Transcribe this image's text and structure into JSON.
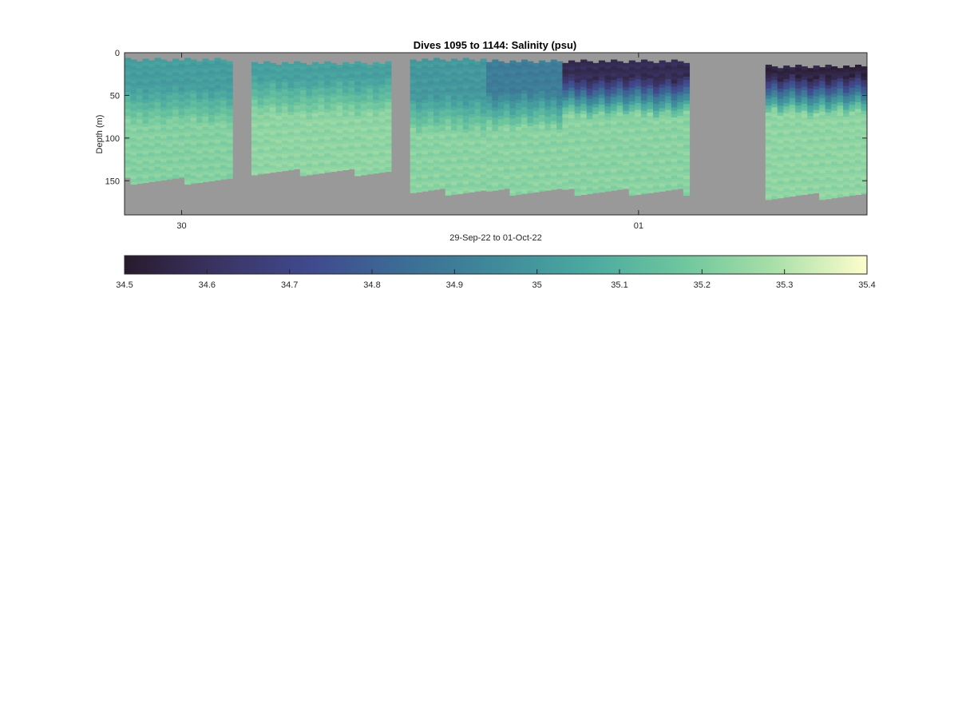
{
  "chart_data": {
    "type": "heatmap",
    "title": "Dives 1095 to 1144: Salinity (psu)",
    "xlabel": "29-Sep-22 to 01-Oct-22",
    "ylabel": "Depth (m)",
    "x_range": [
      "2022-09-29T21:00",
      "2022-10-01T12:00"
    ],
    "x_ticks": [
      {
        "label": "30",
        "value": "2022-09-30T00:00"
      },
      {
        "label": "01",
        "value": "2022-10-01T00:00"
      }
    ],
    "y_range": [
      0,
      190
    ],
    "y_reversed": true,
    "y_ticks": [
      0,
      50,
      100,
      150
    ],
    "nodata_color": "#999999",
    "colorbar": {
      "colormap": "deep (cmocean, reversed)",
      "range": [
        34.5,
        35.4
      ],
      "ticks": [
        "34.5",
        "34.6",
        "34.7",
        "34.8",
        "34.9",
        "35",
        "35.1",
        "35.2",
        "35.3",
        "35.4"
      ]
    },
    "segments": [
      {
        "start": "2022-09-29T21:00",
        "end": "2022-09-30T02:40",
        "top_depth": 6,
        "bottom_depth": 150,
        "surface_salinity": 35.02,
        "halocline_depth": 60,
        "deep_salinity": 35.22
      },
      {
        "start": "2022-09-30T03:40",
        "end": "2022-09-30T11:00",
        "top_depth": 10,
        "bottom_depth": 140,
        "surface_salinity": 35.03,
        "halocline_depth": 50,
        "deep_salinity": 35.24
      },
      {
        "start": "2022-09-30T12:00",
        "end": "2022-09-30T16:00",
        "top_depth": 6,
        "bottom_depth": 163,
        "surface_salinity": 35.0,
        "halocline_depth": 70,
        "deep_salinity": 35.23
      },
      {
        "start": "2022-09-30T16:00",
        "end": "2022-09-30T20:00",
        "top_depth": 8,
        "bottom_depth": 163,
        "surface_salinity": 34.9,
        "halocline_depth": 65,
        "deep_salinity": 35.23
      },
      {
        "start": "2022-09-30T20:00",
        "end": "2022-10-01T02:40",
        "top_depth": 8,
        "bottom_depth": 163,
        "surface_salinity": 34.58,
        "halocline_depth": 50,
        "deep_salinity": 35.23
      },
      {
        "start": "2022-10-01T06:40",
        "end": "2022-10-01T12:00",
        "top_depth": 14,
        "bottom_depth": 168,
        "surface_salinity": 34.54,
        "halocline_depth": 48,
        "deep_salinity": 35.24
      }
    ]
  }
}
